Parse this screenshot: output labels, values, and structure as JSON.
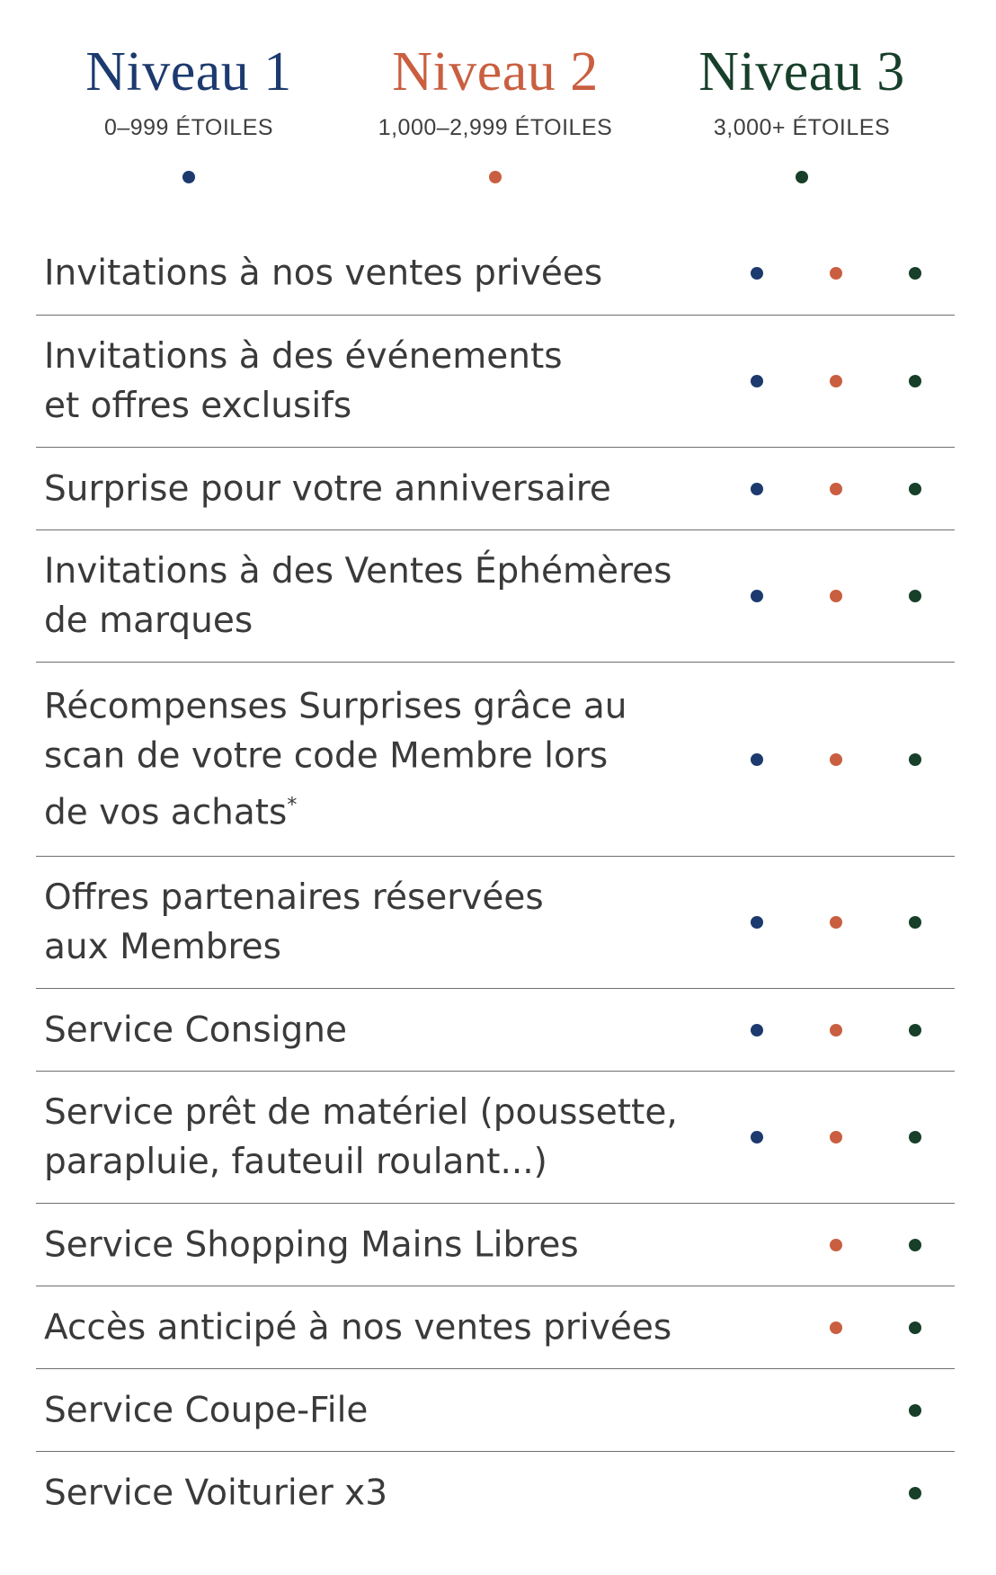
{
  "colors": {
    "tier1": "#1c3a6e",
    "tier2": "#c95f40",
    "tier3": "#173f2a",
    "divider": "#6f6f6f"
  },
  "tiers": [
    {
      "name": "Niveau 1",
      "range": "0–999 ÉTOILES"
    },
    {
      "name": "Niveau 2",
      "range": "1,000–2,999 ÉTOILES"
    },
    {
      "name": "Niveau 3",
      "range": "3,000+ ÉTOILES"
    }
  ],
  "benefits": [
    {
      "label": "Invitations à nos ventes privées",
      "tiers": [
        true,
        true,
        true
      ]
    },
    {
      "label": "Invitations à des événements\net offres exclusifs",
      "tiers": [
        true,
        true,
        true
      ]
    },
    {
      "label": "Surprise pour votre anniversaire",
      "tiers": [
        true,
        true,
        true
      ]
    },
    {
      "label": "Invitations à des Ventes Éphémères\nde marques",
      "tiers": [
        true,
        true,
        true
      ]
    },
    {
      "label": "Récompenses Surprises grâce au\nscan de votre code Membre lors\nde vos achats",
      "footnote": "*",
      "tiers": [
        true,
        true,
        true
      ]
    },
    {
      "label": "Offres partenaires réservées\naux Membres",
      "tiers": [
        true,
        true,
        true
      ]
    },
    {
      "label": "Service Consigne",
      "tiers": [
        true,
        true,
        true
      ]
    },
    {
      "label": "Service prêt de matériel (poussette,\nparapluie, fauteuil roulant...)",
      "tiers": [
        true,
        true,
        true
      ]
    },
    {
      "label": "Service Shopping Mains Libres",
      "tiers": [
        false,
        true,
        true
      ]
    },
    {
      "label": "Accès anticipé à nos ventes privées",
      "tiers": [
        false,
        true,
        true
      ]
    },
    {
      "label": "Service Coupe-File",
      "tiers": [
        false,
        false,
        true
      ]
    },
    {
      "label": "Service Voiturier x3",
      "tiers": [
        false,
        false,
        true
      ]
    }
  ]
}
